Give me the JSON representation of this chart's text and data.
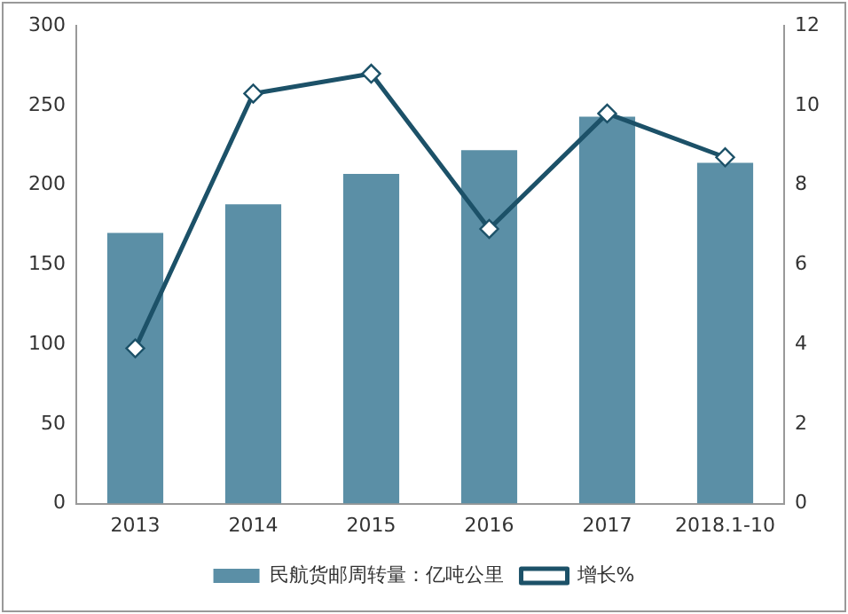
{
  "chart_data": {
    "type": "bar",
    "categories": [
      "2013",
      "2014",
      "2015",
      "2016",
      "2017",
      "2018.1-10"
    ],
    "series": [
      {
        "name": "民航货邮周转量：亿吨公里",
        "color": "#5b8fa6",
        "values": [
          170,
          188,
          207,
          222,
          243,
          214
        ]
      },
      {
        "name": "增长%",
        "type": "line",
        "axis": "y2",
        "color": "#1c5168",
        "marker": "diamond",
        "values": [
          3.9,
          10.3,
          10.8,
          6.9,
          9.8,
          8.7
        ]
      }
    ],
    "ylim": [
      0,
      300
    ],
    "yticks": [
      0,
      50,
      100,
      150,
      200,
      250,
      300
    ],
    "y2lim": [
      0,
      12
    ],
    "y2ticks": [
      0,
      2,
      4,
      6,
      8,
      10,
      12
    ],
    "grid": false,
    "legend": "bottom"
  }
}
